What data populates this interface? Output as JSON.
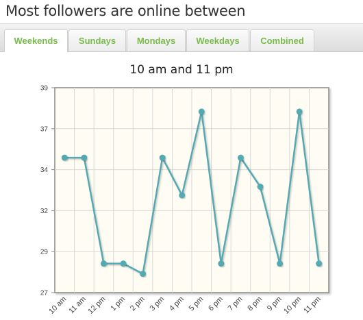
{
  "page": {
    "title": "Most followers are online between"
  },
  "tabs": [
    {
      "label": "Weekends",
      "active": true
    },
    {
      "label": "Sundays",
      "active": false
    },
    {
      "label": "Mondays",
      "active": false
    },
    {
      "label": "Weekdays",
      "active": false
    },
    {
      "label": "Combined",
      "active": false
    }
  ],
  "colors": {
    "accent": "#7aba4a",
    "series_line": "#54a9b3",
    "plot_background": "#fffdf3",
    "grid": "#d8d8d8"
  },
  "chart_data": {
    "type": "line",
    "title": "10 am and 11 pm",
    "categories": [
      "10 am",
      "11 am",
      "12 pm",
      "1 pm",
      "2 pm",
      "3 pm",
      "4 pm",
      "5 pm",
      "6 pm",
      "7 pm",
      "8 pm",
      "9 pm",
      "10 pm",
      "11 pm"
    ],
    "series": [
      {
        "values": [
          34.9,
          34.9,
          28.7,
          28.7,
          28.1,
          34.9,
          32.7,
          37.6,
          28.7,
          34.9,
          33.2,
          28.7,
          37.6,
          28.7
        ]
      }
    ],
    "yticks": [
      "39",
      "37",
      "34",
      "32",
      "29",
      "27"
    ],
    "ylim": [
      27,
      39
    ],
    "xlabel": "",
    "ylabel": "",
    "grid": true,
    "legend": "none"
  }
}
